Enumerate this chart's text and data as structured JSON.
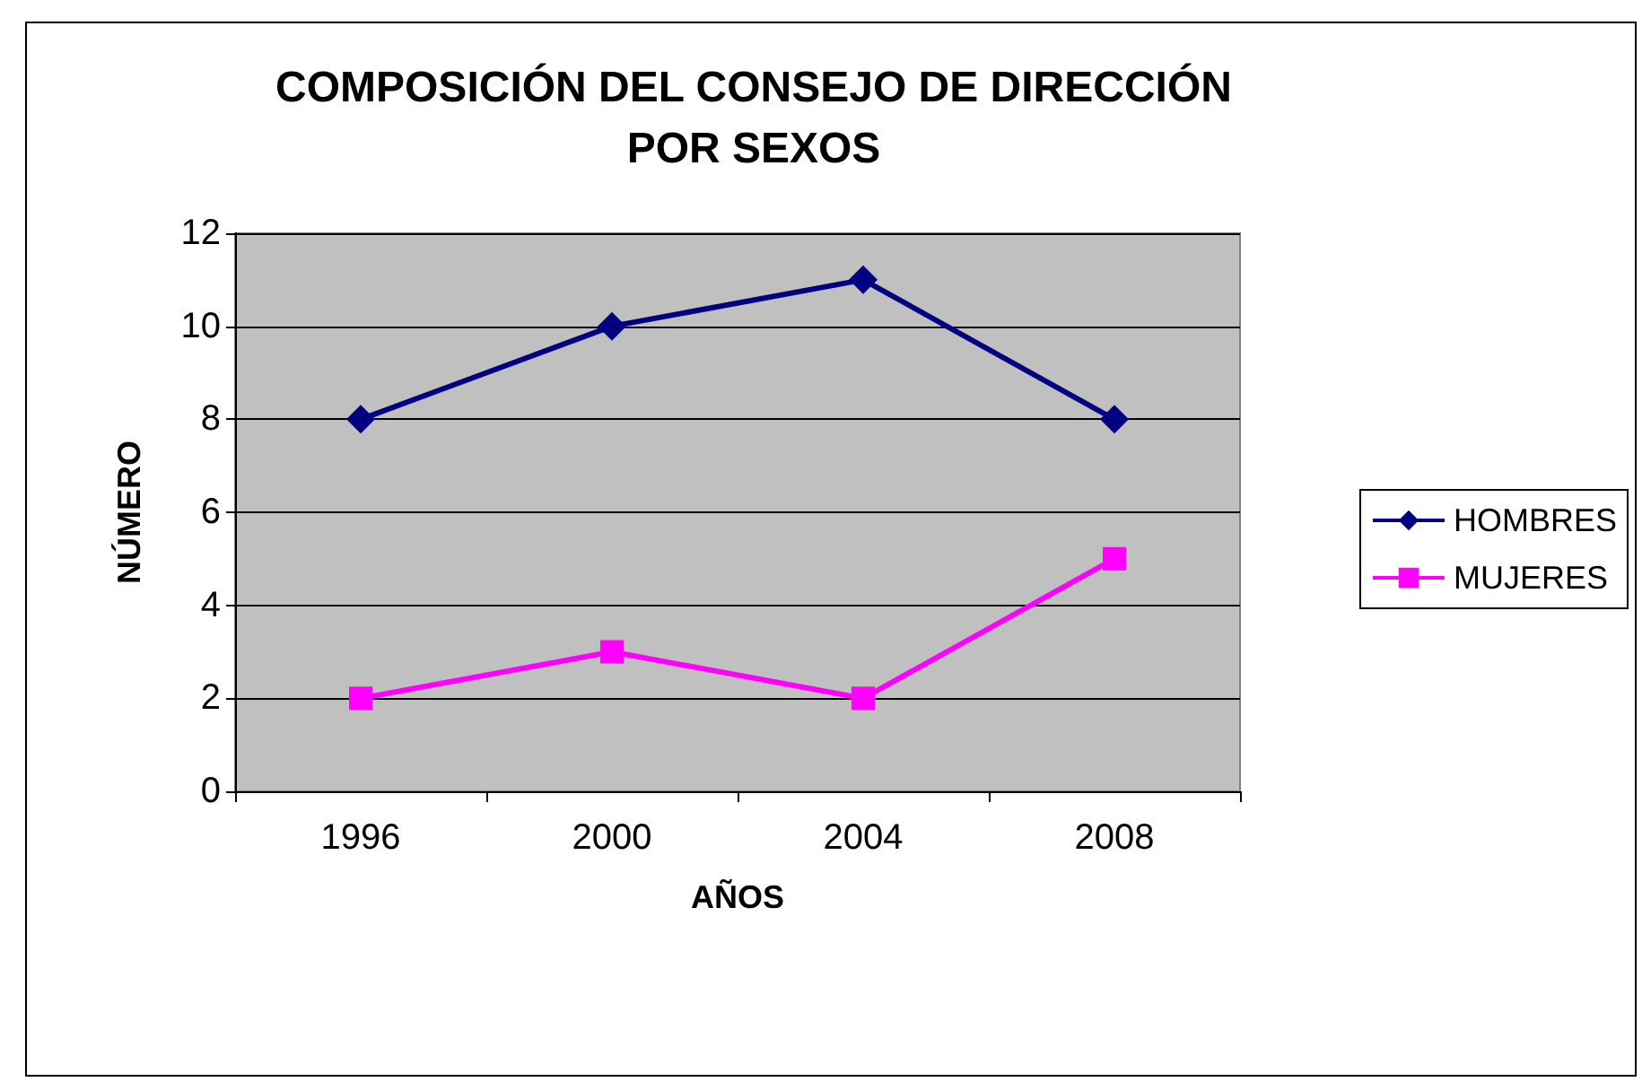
{
  "chart_data": {
    "type": "line",
    "title": "COMPOSICIÓN DEL CONSEJO DE DIRECCIÓN\nPOR SEXOS",
    "xlabel": "AÑOS",
    "ylabel": "NÚMERO",
    "categories": [
      "1996",
      "2000",
      "2004",
      "2008"
    ],
    "series": [
      {
        "name": "HOMBRES",
        "color": "#000080",
        "marker": "diamond",
        "values": [
          8,
          10,
          11,
          8
        ]
      },
      {
        "name": "MUJERES",
        "color": "#ff00ff",
        "marker": "square",
        "values": [
          2,
          3,
          2,
          5
        ]
      }
    ],
    "ylim": [
      0,
      12
    ],
    "yticks": [
      0,
      2,
      4,
      6,
      8,
      10,
      12
    ],
    "grid": "y",
    "legend": "right",
    "line_style": "solid"
  }
}
